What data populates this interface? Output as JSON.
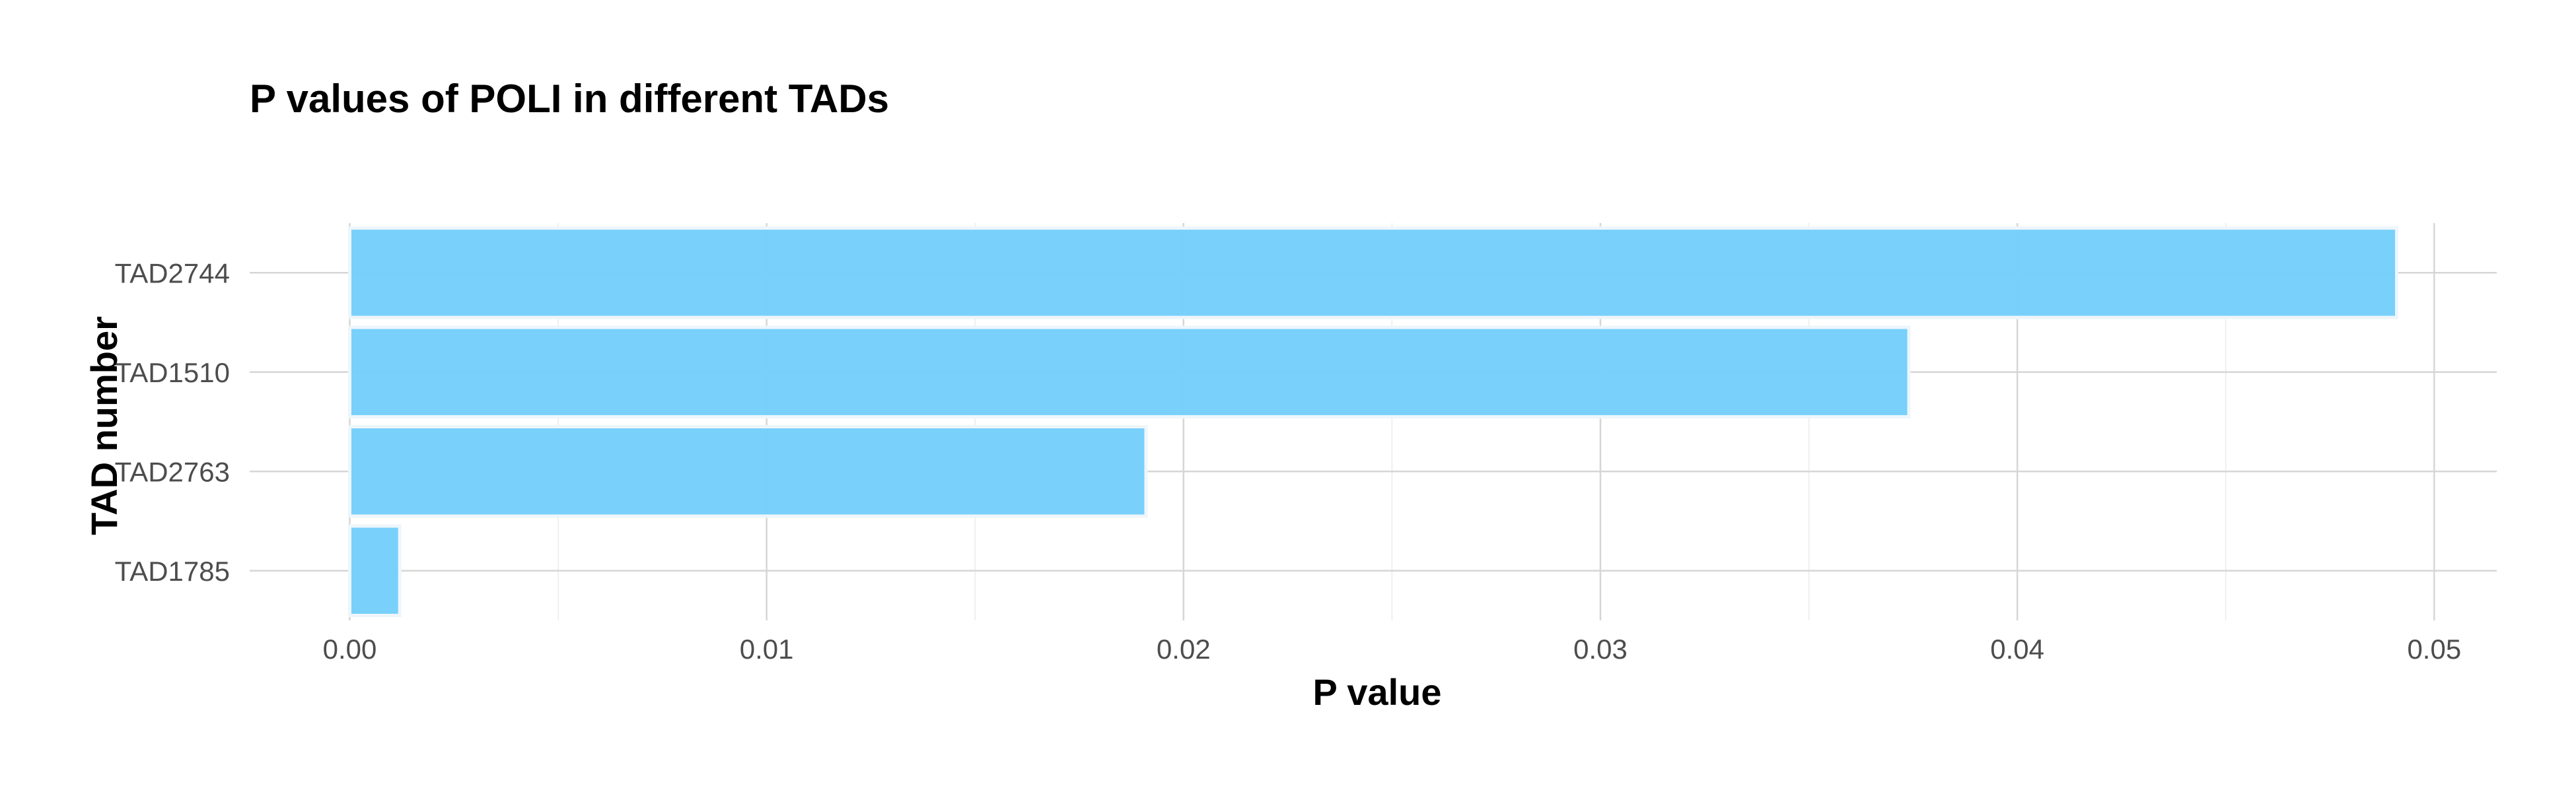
{
  "chart_data": {
    "type": "bar",
    "orientation": "horizontal",
    "title": "P values of POLI in different TADs",
    "xlabel": "P value",
    "ylabel": "TAD number",
    "categories": [
      "TAD2744",
      "TAD1510",
      "TAD2763",
      "TAD1785"
    ],
    "values": [
      0.0491,
      0.0374,
      0.0191,
      0.0012
    ],
    "xlim": [
      -0.0024,
      0.0515
    ],
    "xticks": [
      0.0,
      0.01,
      0.02,
      0.03,
      0.04,
      0.05
    ],
    "xtick_labels": [
      "0.00",
      "0.01",
      "0.02",
      "0.03",
      "0.04",
      "0.05"
    ],
    "bar_color": "#74CEFB",
    "grid": true,
    "legend": "none"
  }
}
